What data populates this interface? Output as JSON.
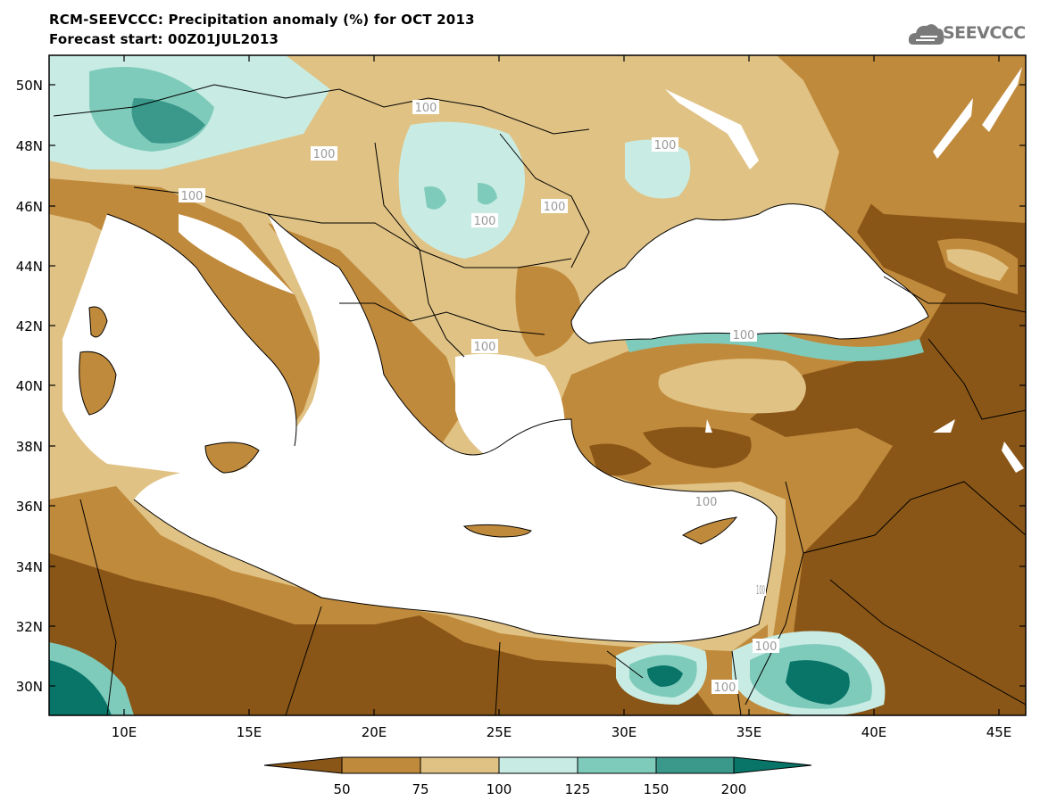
{
  "header": {
    "title": "RCM-SEEVCCC: Precipitation anomaly (%) for OCT 2013",
    "subtitle": "Forecast start: 00Z01JUL2013",
    "logo_text": "SEEVCCC"
  },
  "axes": {
    "lat_labels": [
      "50N",
      "48N",
      "46N",
      "44N",
      "42N",
      "40N",
      "38N",
      "36N",
      "34N",
      "32N",
      "30N"
    ],
    "lon_labels": [
      "10E",
      "15E",
      "20E",
      "25E",
      "30E",
      "35E",
      "40E",
      "45E"
    ]
  },
  "contour_labels": [
    "100",
    "100",
    "100",
    "100",
    "100",
    "100",
    "100",
    "100",
    "100",
    "100",
    "100",
    "100"
  ],
  "colorbar": {
    "tick_labels": [
      "50",
      "75",
      "100",
      "125",
      "150",
      "200"
    ],
    "colors": [
      "#8a5617",
      "#c08a3c",
      "#e0c284",
      "#c8ece4",
      "#7fcbbb",
      "#3a998b",
      "#087568"
    ]
  },
  "colors": {
    "sea": "#ffffff",
    "very_dry": "#8a5617",
    "dry": "#c08a3c",
    "slightly_dry": "#e0c284",
    "slightly_wet": "#c8ece4",
    "wet": "#7fcbbb",
    "very_wet": "#3a998b",
    "extreme_wet": "#087568"
  }
}
